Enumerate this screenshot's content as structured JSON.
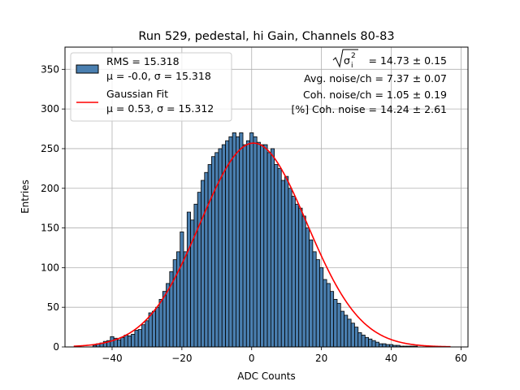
{
  "chart_data": {
    "type": "bar",
    "title": "Run 529, pedestal, hi Gain, Channels 80-83",
    "xlabel": "ADC Counts",
    "ylabel": "Entries",
    "xlim": [
      -53.5,
      62
    ],
    "ylim": [
      0,
      378
    ],
    "xticks": [
      -40,
      -20,
      0,
      20,
      40,
      60
    ],
    "yticks": [
      0,
      50,
      100,
      150,
      200,
      250,
      300,
      350
    ],
    "grid": true,
    "bins": {
      "x": [
        -45,
        -44,
        -43,
        -42,
        -41,
        -40,
        -39,
        -38,
        -37,
        -36,
        -35,
        -34,
        -33,
        -32,
        -31,
        -30,
        -29,
        -28,
        -27,
        -26,
        -25,
        -24,
        -23,
        -22,
        -21,
        -20,
        -19,
        -18,
        -17,
        -16,
        -15,
        -14,
        -13,
        -12,
        -11,
        -10,
        -9,
        -8,
        -7,
        -6,
        -5,
        -4,
        -3,
        -2,
        -1,
        0,
        1,
        2,
        3,
        4,
        5,
        6,
        7,
        8,
        9,
        10,
        11,
        12,
        13,
        14,
        15,
        16,
        17,
        18,
        19,
        20,
        21,
        22,
        23,
        24,
        25,
        26,
        27,
        28,
        29,
        30,
        31,
        32,
        33,
        34,
        35,
        36,
        37,
        38,
        39,
        40,
        41,
        42,
        43,
        44,
        45,
        46,
        47,
        48,
        49,
        50,
        51,
        52,
        53,
        54,
        55,
        56
      ],
      "counts": [
        2,
        4,
        5,
        7,
        8,
        13,
        11,
        9,
        12,
        15,
        14,
        16,
        21,
        22,
        28,
        33,
        43,
        45,
        50,
        60,
        70,
        80,
        95,
        110,
        120,
        145,
        120,
        170,
        160,
        180,
        195,
        210,
        220,
        230,
        240,
        245,
        250,
        255,
        260,
        265,
        270,
        265,
        270,
        255,
        260,
        270,
        265,
        258,
        255,
        255,
        245,
        250,
        230,
        225,
        210,
        215,
        200,
        190,
        180,
        175,
        165,
        150,
        135,
        120,
        110,
        100,
        85,
        80,
        70,
        60,
        55,
        45,
        40,
        35,
        30,
        25,
        18,
        15,
        12,
        10,
        8,
        6,
        4,
        4,
        3,
        3,
        2,
        2,
        1,
        1,
        1,
        1,
        1,
        0,
        0,
        0,
        0,
        0,
        0,
        0,
        0,
        0
      ],
      "color": "#4a7fb0",
      "edgecolor": "#000000"
    },
    "series": [
      {
        "name": "Gaussian Fit",
        "type": "line",
        "color": "#ff0000",
        "mu": 0.53,
        "sigma": 15.312,
        "amplitude": 257,
        "x_range": [
          -51,
          57
        ]
      }
    ],
    "legend": {
      "position": "top-left",
      "entries": [
        {
          "lines": [
            "RMS = 15.318",
            "μ = -0.0, σ = 15.318"
          ],
          "marker": "patch",
          "color": "#4a7fb0"
        },
        {
          "lines": [
            "Gaussian Fit",
            "μ = 0.53, σ = 15.312"
          ],
          "marker": "line",
          "color": "#ff0000"
        }
      ]
    },
    "annotations": [
      {
        "sqrt_prefix": "σ",
        "sqrt_sub": "i",
        "sqrt_sup": "2",
        "text": " = 14.73 ± 0.15"
      },
      {
        "text": "Avg. noise/ch = 7.37 ± 0.07"
      },
      {
        "text": "Coh. noise/ch = 1.05 ± 0.19"
      },
      {
        "text": "[%] Coh. noise = 14.24 ± 2.61"
      }
    ]
  }
}
